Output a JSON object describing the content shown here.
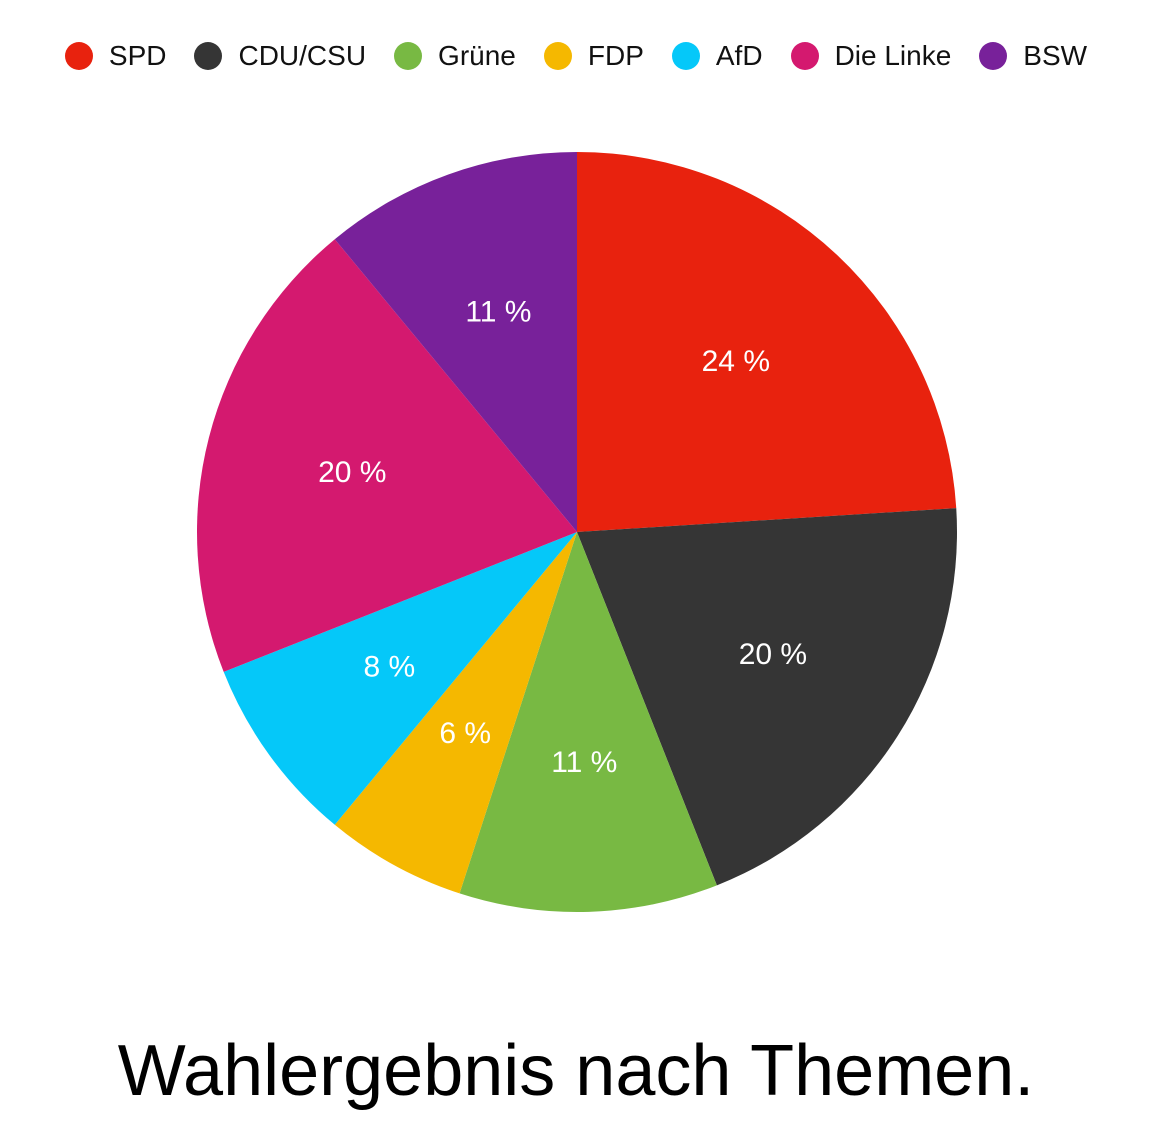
{
  "chart_data": {
    "type": "pie",
    "title": "Wahlergebnis nach Themen.",
    "legend_position": "top",
    "slices": [
      {
        "name": "SPD",
        "value": 24,
        "label": "24 %",
        "color": "#e8220e"
      },
      {
        "name": "CDU/CSU",
        "value": 20,
        "label": "20 %",
        "color": "#353535"
      },
      {
        "name": "Grüne",
        "value": 11,
        "label": "11 %",
        "color": "#78b943"
      },
      {
        "name": "FDP",
        "value": 6,
        "label": "6 %",
        "color": "#f5b800"
      },
      {
        "name": "AfD",
        "value": 8,
        "label": "8 %",
        "color": "#05c8f9"
      },
      {
        "name": "Die Linke",
        "value": 20,
        "label": "20 %",
        "color": "#d4196f"
      },
      {
        "name": "BSW",
        "value": 11,
        "label": "11 %",
        "color": "#78219a"
      }
    ]
  }
}
